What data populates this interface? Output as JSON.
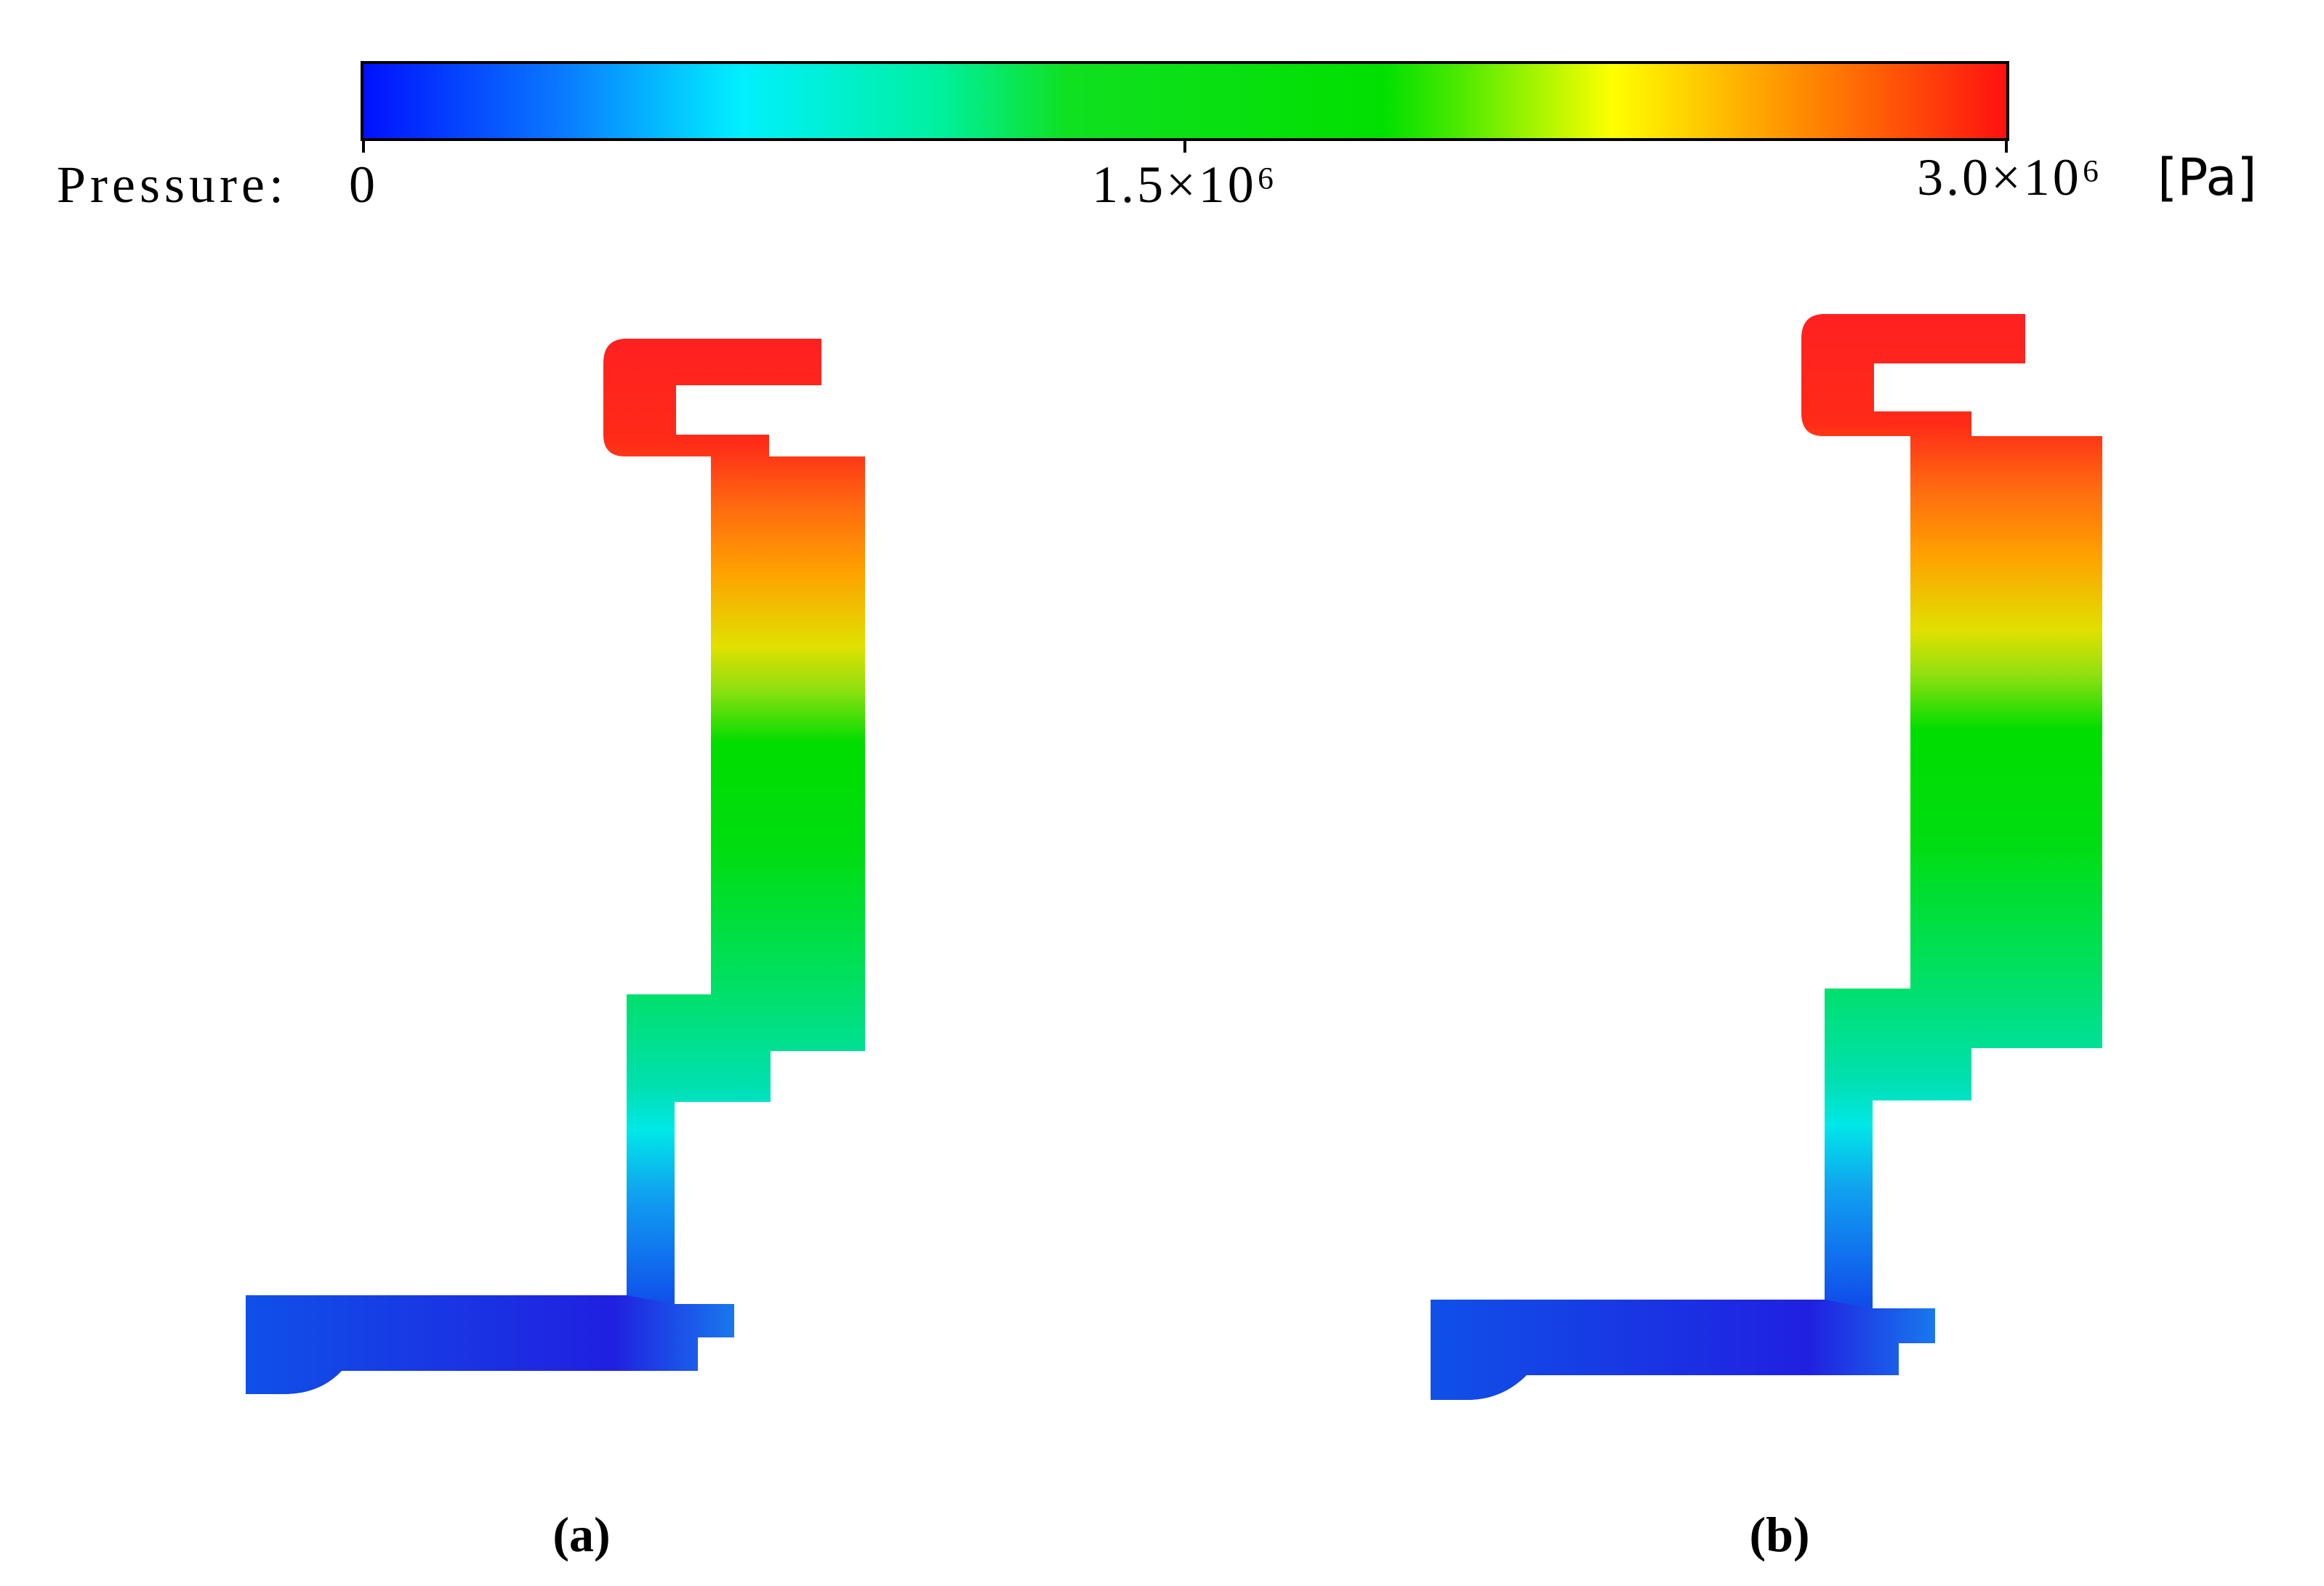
{
  "colorbar": {
    "quantity_label": "Pressure:",
    "ticks": [
      {
        "label": "0",
        "value": 0
      },
      {
        "label": "1.5×10⁶",
        "value": 1500000
      },
      {
        "label": "3.0×10⁶",
        "value": 3000000
      }
    ],
    "unit": "[Pa]",
    "colormap": [
      "#0000ff",
      "#00ffff",
      "#00e000",
      "#ffff00",
      "#ff8c00",
      "#ff0000"
    ]
  },
  "panels": [
    {
      "label": "(a)",
      "field": "pressure"
    },
    {
      "label": "(b)",
      "field": "pressure"
    }
  ]
}
